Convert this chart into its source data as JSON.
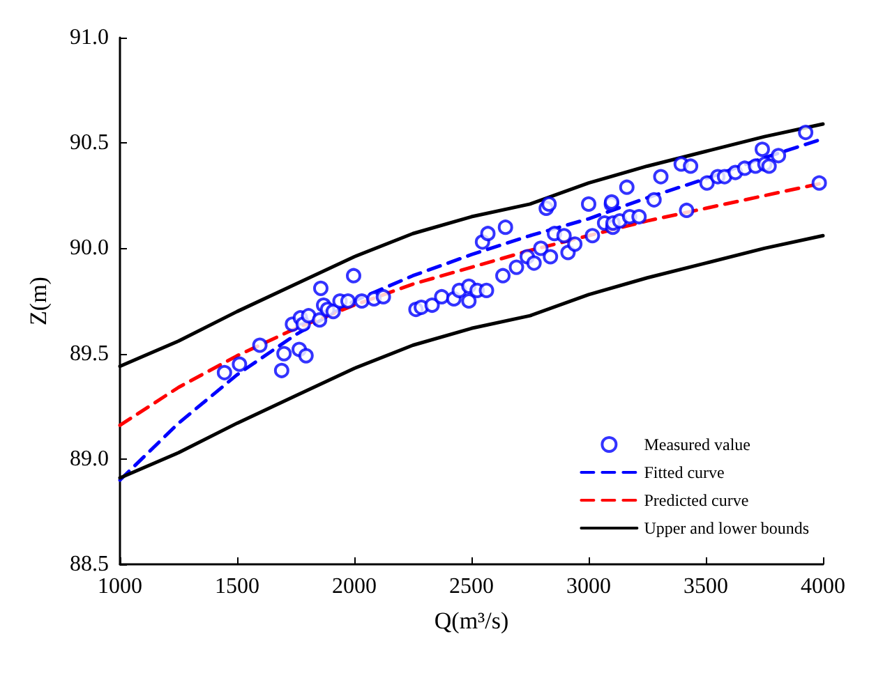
{
  "chart_data": {
    "type": "scatter",
    "xlabel": "Q(m³/s)",
    "ylabel": "Z(m)",
    "xlim": [
      1000,
      4000
    ],
    "xticks": [
      1000,
      1500,
      2000,
      2500,
      3000,
      3500,
      4000
    ],
    "ylim": [
      88.5,
      91.0
    ],
    "yticks": [
      {
        "value": 88.5,
        "label": "88.5"
      },
      {
        "value": 89.0,
        "label": "89.0"
      },
      {
        "value": 89.5,
        "label": "89.5"
      },
      {
        "value": 90.0,
        "label": "90.0"
      },
      {
        "value": 90.5,
        "label": "90.5"
      },
      {
        "value": 91.0,
        "label": "91.0"
      }
    ],
    "grid": false,
    "legend": "bottom right",
    "series": [
      {
        "name": "Measured value",
        "color": "#0000ff",
        "marker": "circle",
        "x": [
          1446,
          1510,
          1597,
          1690,
          1700,
          1736,
          1765,
          1770,
          1782,
          1794,
          1805,
          1852,
          1857,
          1869,
          1886,
          1910,
          1939,
          1973,
          1997,
          2032,
          2084,
          2124,
          2263,
          2286,
          2332,
          2373,
          2425,
          2448,
          2489,
          2489,
          2524,
          2547,
          2564,
          2570,
          2634,
          2645,
          2692,
          2738,
          2767,
          2796,
          2819,
          2831,
          2837,
          2854,
          2895,
          2912,
          2941,
          3000,
          3016,
          3068,
          3097,
          3098,
          3103,
          3104,
          3133,
          3163,
          3175,
          3215,
          3279,
          3308,
          3395,
          3418,
          3435,
          3505,
          3551,
          3580,
          3626,
          3666,
          3712,
          3741,
          3752,
          3770,
          3810,
          3926,
          3984
        ],
        "values": [
          89.41,
          89.45,
          89.54,
          89.42,
          89.5,
          89.64,
          89.52,
          89.67,
          89.64,
          89.49,
          89.68,
          89.66,
          89.81,
          89.73,
          89.71,
          89.7,
          89.75,
          89.75,
          89.87,
          89.75,
          89.76,
          89.77,
          89.71,
          89.72,
          89.73,
          89.77,
          89.76,
          89.8,
          89.75,
          89.82,
          89.8,
          90.03,
          89.8,
          90.07,
          89.87,
          90.1,
          89.91,
          89.96,
          89.93,
          90.0,
          90.19,
          90.21,
          89.96,
          90.07,
          90.06,
          89.98,
          90.02,
          90.21,
          90.06,
          90.12,
          90.21,
          90.22,
          90.1,
          90.12,
          90.13,
          90.29,
          90.15,
          90.15,
          90.23,
          90.34,
          90.4,
          90.18,
          90.39,
          90.31,
          90.34,
          90.34,
          90.36,
          90.38,
          90.39,
          90.47,
          90.4,
          90.39,
          90.44,
          90.55,
          90.31
        ]
      },
      {
        "name": "Fitted curve",
        "type": "line",
        "color": "#0000ff",
        "line_style": "dashed",
        "marker": "none",
        "x": [
          1000,
          1250,
          1500,
          1750,
          2000,
          2250,
          2500,
          2750,
          3000,
          3250,
          3500,
          3750,
          4000
        ],
        "values": [
          88.9,
          89.17,
          89.4,
          89.59,
          89.75,
          89.87,
          89.97,
          90.06,
          90.14,
          90.24,
          90.33,
          90.43,
          90.52
        ]
      },
      {
        "name": "Predicted curve",
        "type": "line",
        "color": "#ff0000",
        "line_style": "dashed",
        "marker": "none",
        "x": [
          1000,
          1250,
          1500,
          1750,
          2000,
          2250,
          2500,
          2750,
          3000,
          3250,
          3500,
          3750,
          4000
        ],
        "values": [
          89.16,
          89.34,
          89.49,
          89.62,
          89.73,
          89.83,
          89.91,
          89.99,
          90.06,
          90.13,
          90.19,
          90.25,
          90.31
        ]
      },
      {
        "name": "Upper and lower bounds",
        "type": "line",
        "color": "#000000",
        "line_style": "solid",
        "marker": "none",
        "x": [
          1000,
          1250,
          1500,
          1750,
          2000,
          2250,
          2500,
          2750,
          3000,
          3250,
          3500,
          3750,
          4000
        ],
        "values": [
          89.44,
          89.56,
          89.7,
          89.83,
          89.96,
          90.07,
          90.15,
          90.21,
          90.31,
          90.39,
          90.46,
          90.53,
          90.59
        ]
      },
      {
        "type": "line",
        "color": "#000000",
        "line_style": "solid",
        "marker": "none",
        "x": [
          1000,
          1250,
          1500,
          1750,
          2000,
          2250,
          2500,
          2750,
          3000,
          3250,
          3500,
          3750,
          4000
        ],
        "values": [
          88.91,
          89.03,
          89.17,
          89.3,
          89.43,
          89.54,
          89.62,
          89.68,
          89.78,
          89.86,
          89.93,
          90.0,
          90.06
        ]
      }
    ]
  }
}
